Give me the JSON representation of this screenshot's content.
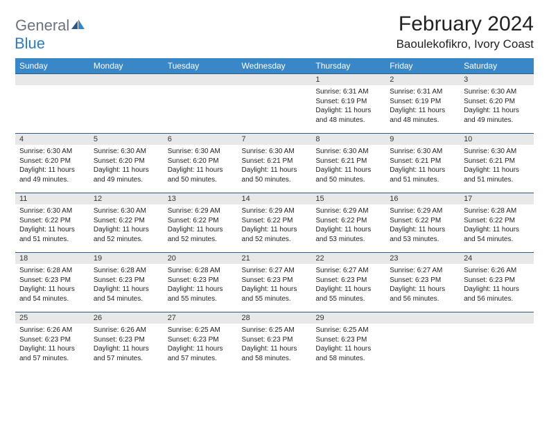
{
  "logo": {
    "gray": "General",
    "blue": "Blue"
  },
  "title": "February 2024",
  "location": "Baoulekofikro, Ivory Coast",
  "headers": [
    "Sunday",
    "Monday",
    "Tuesday",
    "Wednesday",
    "Thursday",
    "Friday",
    "Saturday"
  ],
  "colors": {
    "header_bg": "#3a87c8",
    "daynum_bg": "#e8e8e8",
    "row_border": "#2c5a85",
    "logo_gray": "#6b7280",
    "logo_blue": "#2f7bbf"
  },
  "weeks": [
    [
      {
        "n": "",
        "sr": "",
        "ss": "",
        "dl": ""
      },
      {
        "n": "",
        "sr": "",
        "ss": "",
        "dl": ""
      },
      {
        "n": "",
        "sr": "",
        "ss": "",
        "dl": ""
      },
      {
        "n": "",
        "sr": "",
        "ss": "",
        "dl": ""
      },
      {
        "n": "1",
        "sr": "Sunrise: 6:31 AM",
        "ss": "Sunset: 6:19 PM",
        "dl": "Daylight: 11 hours and 48 minutes."
      },
      {
        "n": "2",
        "sr": "Sunrise: 6:31 AM",
        "ss": "Sunset: 6:19 PM",
        "dl": "Daylight: 11 hours and 48 minutes."
      },
      {
        "n": "3",
        "sr": "Sunrise: 6:30 AM",
        "ss": "Sunset: 6:20 PM",
        "dl": "Daylight: 11 hours and 49 minutes."
      }
    ],
    [
      {
        "n": "4",
        "sr": "Sunrise: 6:30 AM",
        "ss": "Sunset: 6:20 PM",
        "dl": "Daylight: 11 hours and 49 minutes."
      },
      {
        "n": "5",
        "sr": "Sunrise: 6:30 AM",
        "ss": "Sunset: 6:20 PM",
        "dl": "Daylight: 11 hours and 49 minutes."
      },
      {
        "n": "6",
        "sr": "Sunrise: 6:30 AM",
        "ss": "Sunset: 6:20 PM",
        "dl": "Daylight: 11 hours and 50 minutes."
      },
      {
        "n": "7",
        "sr": "Sunrise: 6:30 AM",
        "ss": "Sunset: 6:21 PM",
        "dl": "Daylight: 11 hours and 50 minutes."
      },
      {
        "n": "8",
        "sr": "Sunrise: 6:30 AM",
        "ss": "Sunset: 6:21 PM",
        "dl": "Daylight: 11 hours and 50 minutes."
      },
      {
        "n": "9",
        "sr": "Sunrise: 6:30 AM",
        "ss": "Sunset: 6:21 PM",
        "dl": "Daylight: 11 hours and 51 minutes."
      },
      {
        "n": "10",
        "sr": "Sunrise: 6:30 AM",
        "ss": "Sunset: 6:21 PM",
        "dl": "Daylight: 11 hours and 51 minutes."
      }
    ],
    [
      {
        "n": "11",
        "sr": "Sunrise: 6:30 AM",
        "ss": "Sunset: 6:22 PM",
        "dl": "Daylight: 11 hours and 51 minutes."
      },
      {
        "n": "12",
        "sr": "Sunrise: 6:30 AM",
        "ss": "Sunset: 6:22 PM",
        "dl": "Daylight: 11 hours and 52 minutes."
      },
      {
        "n": "13",
        "sr": "Sunrise: 6:29 AM",
        "ss": "Sunset: 6:22 PM",
        "dl": "Daylight: 11 hours and 52 minutes."
      },
      {
        "n": "14",
        "sr": "Sunrise: 6:29 AM",
        "ss": "Sunset: 6:22 PM",
        "dl": "Daylight: 11 hours and 52 minutes."
      },
      {
        "n": "15",
        "sr": "Sunrise: 6:29 AM",
        "ss": "Sunset: 6:22 PM",
        "dl": "Daylight: 11 hours and 53 minutes."
      },
      {
        "n": "16",
        "sr": "Sunrise: 6:29 AM",
        "ss": "Sunset: 6:22 PM",
        "dl": "Daylight: 11 hours and 53 minutes."
      },
      {
        "n": "17",
        "sr": "Sunrise: 6:28 AM",
        "ss": "Sunset: 6:22 PM",
        "dl": "Daylight: 11 hours and 54 minutes."
      }
    ],
    [
      {
        "n": "18",
        "sr": "Sunrise: 6:28 AM",
        "ss": "Sunset: 6:23 PM",
        "dl": "Daylight: 11 hours and 54 minutes."
      },
      {
        "n": "19",
        "sr": "Sunrise: 6:28 AM",
        "ss": "Sunset: 6:23 PM",
        "dl": "Daylight: 11 hours and 54 minutes."
      },
      {
        "n": "20",
        "sr": "Sunrise: 6:28 AM",
        "ss": "Sunset: 6:23 PM",
        "dl": "Daylight: 11 hours and 55 minutes."
      },
      {
        "n": "21",
        "sr": "Sunrise: 6:27 AM",
        "ss": "Sunset: 6:23 PM",
        "dl": "Daylight: 11 hours and 55 minutes."
      },
      {
        "n": "22",
        "sr": "Sunrise: 6:27 AM",
        "ss": "Sunset: 6:23 PM",
        "dl": "Daylight: 11 hours and 55 minutes."
      },
      {
        "n": "23",
        "sr": "Sunrise: 6:27 AM",
        "ss": "Sunset: 6:23 PM",
        "dl": "Daylight: 11 hours and 56 minutes."
      },
      {
        "n": "24",
        "sr": "Sunrise: 6:26 AM",
        "ss": "Sunset: 6:23 PM",
        "dl": "Daylight: 11 hours and 56 minutes."
      }
    ],
    [
      {
        "n": "25",
        "sr": "Sunrise: 6:26 AM",
        "ss": "Sunset: 6:23 PM",
        "dl": "Daylight: 11 hours and 57 minutes."
      },
      {
        "n": "26",
        "sr": "Sunrise: 6:26 AM",
        "ss": "Sunset: 6:23 PM",
        "dl": "Daylight: 11 hours and 57 minutes."
      },
      {
        "n": "27",
        "sr": "Sunrise: 6:25 AM",
        "ss": "Sunset: 6:23 PM",
        "dl": "Daylight: 11 hours and 57 minutes."
      },
      {
        "n": "28",
        "sr": "Sunrise: 6:25 AM",
        "ss": "Sunset: 6:23 PM",
        "dl": "Daylight: 11 hours and 58 minutes."
      },
      {
        "n": "29",
        "sr": "Sunrise: 6:25 AM",
        "ss": "Sunset: 6:23 PM",
        "dl": "Daylight: 11 hours and 58 minutes."
      },
      {
        "n": "",
        "sr": "",
        "ss": "",
        "dl": ""
      },
      {
        "n": "",
        "sr": "",
        "ss": "",
        "dl": ""
      }
    ]
  ]
}
